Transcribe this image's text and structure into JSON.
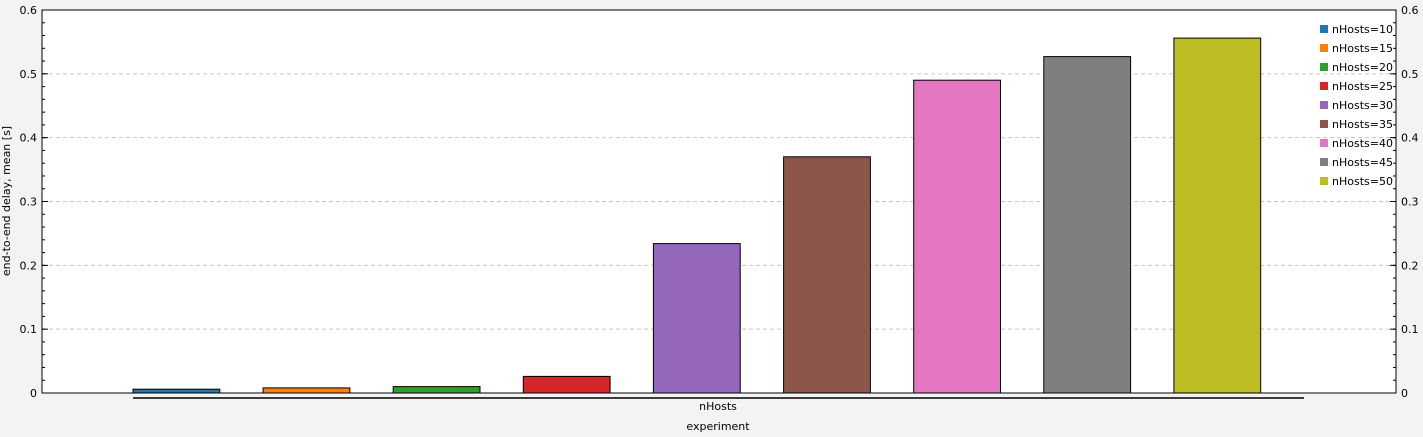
{
  "chart_data": {
    "type": "bar",
    "xlabel": "experiment",
    "ylabel": "end-to-end delay, mean [s]",
    "group_label": "nHosts",
    "categories": [
      "nHosts"
    ],
    "ylim": [
      0,
      0.6
    ],
    "yticks": [
      "0",
      "0.1",
      "0.2",
      "0.3",
      "0.4",
      "0.5",
      "0.6"
    ],
    "grid": true,
    "legend_position": "top-right",
    "series": [
      {
        "name": "nHosts=10",
        "values": [
          0.006
        ],
        "color": "#1f77b4"
      },
      {
        "name": "nHosts=15",
        "values": [
          0.008
        ],
        "color": "#ff7f0e"
      },
      {
        "name": "nHosts=20",
        "values": [
          0.01
        ],
        "color": "#2ca02c"
      },
      {
        "name": "nHosts=25",
        "values": [
          0.026
        ],
        "color": "#d62728"
      },
      {
        "name": "nHosts=30",
        "values": [
          0.234
        ],
        "color": "#9467bd"
      },
      {
        "name": "nHosts=35",
        "values": [
          0.37
        ],
        "color": "#8c564b"
      },
      {
        "name": "nHosts=40",
        "values": [
          0.49
        ],
        "color": "#e377c2"
      },
      {
        "name": "nHosts=45",
        "values": [
          0.527
        ],
        "color": "#7f7f7f"
      },
      {
        "name": "nHosts=50",
        "values": [
          0.556
        ],
        "color": "#bcbd22"
      }
    ]
  }
}
